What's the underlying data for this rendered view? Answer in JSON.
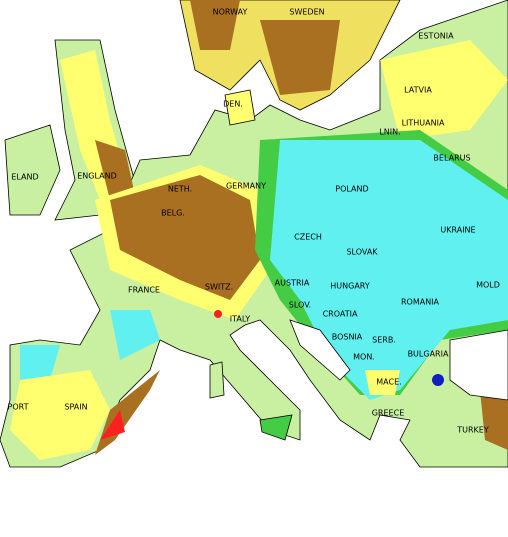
{
  "labels": [
    "NORWAY",
    "SWEDEN",
    "ESTONIA",
    "LATVIA",
    "DEN.",
    "LITHUANIA",
    "LNIN.",
    "BELARUS",
    "ELAND",
    "ENGLAND",
    "NETH.",
    "GERMANY",
    "POLAND",
    "BELG.",
    "UKRAINE",
    "CZECH",
    "SLOVAK",
    "MOLD",
    "FRANCE",
    "SWITZ.",
    "AUSTRIA",
    "HUNGARY",
    "ROMANIA",
    "SLOV.",
    "CROATIA",
    "ITALY",
    "BOSNIA",
    "SERB.",
    "MON.",
    "BULGARIA",
    "MACE.",
    "PORT",
    "SPAIN",
    "GREECE",
    "TURKEY"
  ]
}
